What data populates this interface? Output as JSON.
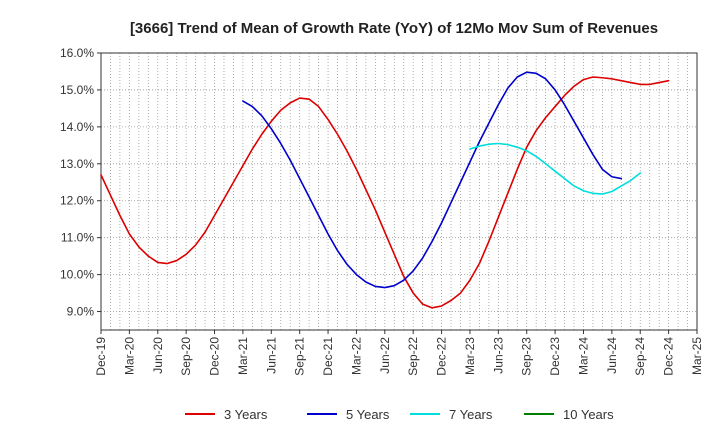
{
  "chart_data": {
    "type": "line",
    "title": "[3666]  Trend of Mean of Growth Rate (YoY) of 12Mo Mov Sum of Revenues",
    "xlabel": "",
    "ylabel": "",
    "ylim": [
      8.5,
      16.0
    ],
    "ytick_values": [
      9.0,
      10.0,
      11.0,
      12.0,
      13.0,
      14.0,
      15.0,
      16.0
    ],
    "ytick_labels": [
      "9.0%",
      "10.0%",
      "11.0%",
      "12.0%",
      "13.0%",
      "14.0%",
      "15.0%",
      "16.0%"
    ],
    "x_start": "Dec-19",
    "xtick_labels": [
      "Dec-19",
      "Mar-20",
      "Jun-20",
      "Sep-20",
      "Dec-20",
      "Mar-21",
      "Jun-21",
      "Sep-21",
      "Dec-21",
      "Mar-22",
      "Jun-22",
      "Sep-22",
      "Dec-22",
      "Mar-23",
      "Jun-23",
      "Sep-23",
      "Dec-23",
      "Mar-24",
      "Jun-24",
      "Sep-24",
      "Dec-24",
      "Mar-25"
    ],
    "grid": true,
    "legend_position": "bottom",
    "series": [
      {
        "name": "3 Years",
        "color": "#dd0000",
        "start_index": 0,
        "values": [
          12.7,
          12.15,
          11.6,
          11.1,
          10.75,
          10.5,
          10.33,
          10.3,
          10.38,
          10.55,
          10.8,
          11.15,
          11.6,
          12.05,
          12.5,
          12.95,
          13.4,
          13.8,
          14.15,
          14.45,
          14.65,
          14.78,
          14.75,
          14.55,
          14.2,
          13.8,
          13.35,
          12.85,
          12.3,
          11.75,
          11.15,
          10.55,
          9.95,
          9.5,
          9.2,
          9.1,
          9.15,
          9.3,
          9.5,
          9.85,
          10.3,
          10.9,
          11.55,
          12.2,
          12.85,
          13.45,
          13.9,
          14.25,
          14.55,
          14.85,
          15.1,
          15.28,
          15.35,
          15.33,
          15.3,
          15.25,
          15.2,
          15.15,
          15.15,
          15.2,
          15.25
        ]
      },
      {
        "name": "5 Years",
        "color": "#0000cc",
        "start_index": 15,
        "values": [
          14.7,
          14.55,
          14.3,
          13.95,
          13.55,
          13.1,
          12.6,
          12.1,
          11.6,
          11.1,
          10.65,
          10.28,
          10.0,
          9.8,
          9.68,
          9.65,
          9.7,
          9.85,
          10.1,
          10.45,
          10.9,
          11.4,
          11.95,
          12.5,
          13.05,
          13.6,
          14.1,
          14.6,
          15.05,
          15.35,
          15.48,
          15.45,
          15.3,
          15.0,
          14.6,
          14.15,
          13.7,
          13.25,
          12.85,
          12.65,
          12.6
        ]
      },
      {
        "name": "7 Years",
        "color": "#00dddd",
        "start_index": 39,
        "values": [
          13.4,
          13.48,
          13.53,
          13.55,
          13.52,
          13.45,
          13.35,
          13.2,
          13.0,
          12.8,
          12.6,
          12.4,
          12.27,
          12.2,
          12.18,
          12.25,
          12.4,
          12.55,
          12.75
        ]
      },
      {
        "name": "10 Years",
        "color": "#008000",
        "start_index": 0,
        "values": []
      }
    ]
  }
}
